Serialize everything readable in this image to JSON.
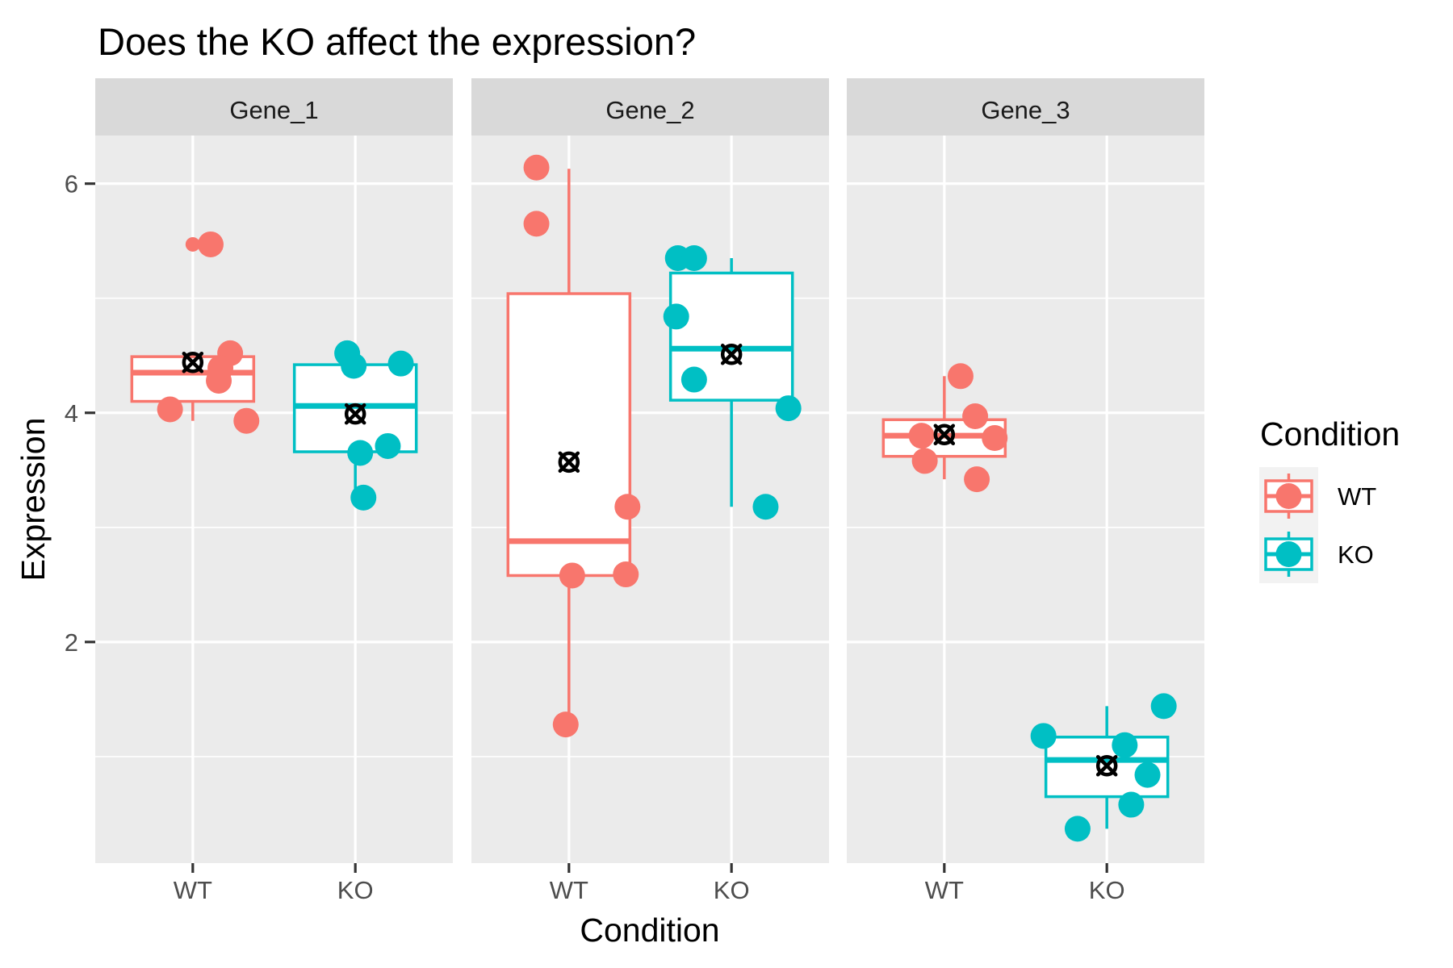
{
  "chart_data": {
    "type": "boxplot",
    "title": "Does the KO affect the expression?",
    "xlabel": "Condition",
    "ylabel": "Expression",
    "ylim": [
      0.07,
      6.42
    ],
    "yticks": [
      2,
      4,
      6
    ],
    "ytick_labels": [
      "2",
      "4",
      "6"
    ],
    "minor_gridlines": [
      1,
      3,
      5
    ],
    "grid": true,
    "categories": [
      "WT",
      "KO"
    ],
    "facets": [
      "Gene_1",
      "Gene_2",
      "Gene_3"
    ],
    "legend": {
      "title": "Condition",
      "position": "right",
      "entries": [
        {
          "label": "WT",
          "color": "#F8766D"
        },
        {
          "label": "KO",
          "color": "#00BFC4"
        }
      ]
    },
    "colors": {
      "WT": "#F8766D",
      "KO": "#00BFC4",
      "mean_marker": "#000000",
      "panel_bg": "#EBEBEB",
      "strip_bg": "#D9D9D9"
    },
    "mean_marker": "circle-x",
    "panels": [
      {
        "facet": "Gene_1",
        "groups": [
          {
            "condition": "WT",
            "lower_whisker": 3.93,
            "q1": 4.1,
            "median": 4.35,
            "q3": 4.49,
            "upper_whisker": 4.52,
            "mean": 4.44,
            "outliers": [
              5.47
            ],
            "points": [
              {
                "jitter": 0.11,
                "y": 5.47
              },
              {
                "jitter": 0.23,
                "y": 4.52
              },
              {
                "jitter": 0.17,
                "y": 4.39
              },
              {
                "jitter": 0.16,
                "y": 4.28
              },
              {
                "jitter": -0.14,
                "y": 4.03
              },
              {
                "jitter": 0.33,
                "y": 3.93
              }
            ]
          },
          {
            "condition": "KO",
            "lower_whisker": 3.26,
            "q1": 3.66,
            "median": 4.06,
            "q3": 4.42,
            "upper_whisker": 4.52,
            "mean": 3.99,
            "outliers": [],
            "points": [
              {
                "jitter": -0.05,
                "y": 4.52
              },
              {
                "jitter": -0.01,
                "y": 4.41
              },
              {
                "jitter": 0.28,
                "y": 4.43
              },
              {
                "jitter": 0.03,
                "y": 3.65
              },
              {
                "jitter": 0.2,
                "y": 3.71
              },
              {
                "jitter": 0.05,
                "y": 3.26
              }
            ]
          }
        ]
      },
      {
        "facet": "Gene_2",
        "groups": [
          {
            "condition": "WT",
            "lower_whisker": 1.28,
            "q1": 2.58,
            "median": 2.88,
            "q3": 5.04,
            "upper_whisker": 6.13,
            "mean": 3.57,
            "outliers": [],
            "points": [
              {
                "jitter": -0.2,
                "y": 6.14
              },
              {
                "jitter": -0.2,
                "y": 5.65
              },
              {
                "jitter": 0.36,
                "y": 3.18
              },
              {
                "jitter": 0.02,
                "y": 2.58
              },
              {
                "jitter": 0.35,
                "y": 2.59
              },
              {
                "jitter": -0.02,
                "y": 1.28
              }
            ]
          },
          {
            "condition": "KO",
            "lower_whisker": 3.18,
            "q1": 4.11,
            "median": 4.56,
            "q3": 5.22,
            "upper_whisker": 5.35,
            "mean": 4.51,
            "outliers": [],
            "points": [
              {
                "jitter": -0.33,
                "y": 5.35
              },
              {
                "jitter": -0.23,
                "y": 5.35
              },
              {
                "jitter": -0.34,
                "y": 4.84
              },
              {
                "jitter": -0.23,
                "y": 4.29
              },
              {
                "jitter": 0.35,
                "y": 4.04
              },
              {
                "jitter": 0.21,
                "y": 3.18
              }
            ]
          }
        ]
      },
      {
        "facet": "Gene_3",
        "groups": [
          {
            "condition": "WT",
            "lower_whisker": 3.42,
            "q1": 3.62,
            "median": 3.8,
            "q3": 3.94,
            "upper_whisker": 4.32,
            "mean": 3.81,
            "outliers": [],
            "points": [
              {
                "jitter": 0.1,
                "y": 4.32
              },
              {
                "jitter": 0.19,
                "y": 3.97
              },
              {
                "jitter": -0.14,
                "y": 3.8
              },
              {
                "jitter": 0.31,
                "y": 3.78
              },
              {
                "jitter": -0.12,
                "y": 3.58
              },
              {
                "jitter": 0.2,
                "y": 3.42
              }
            ]
          },
          {
            "condition": "KO",
            "lower_whisker": 0.37,
            "q1": 0.65,
            "median": 0.97,
            "q3": 1.17,
            "upper_whisker": 1.44,
            "mean": 0.92,
            "outliers": [],
            "points": [
              {
                "jitter": 0.35,
                "y": 1.44
              },
              {
                "jitter": -0.39,
                "y": 1.18
              },
              {
                "jitter": 0.11,
                "y": 1.1
              },
              {
                "jitter": 0.25,
                "y": 0.84
              },
              {
                "jitter": 0.15,
                "y": 0.58
              },
              {
                "jitter": -0.18,
                "y": 0.37
              }
            ]
          }
        ]
      }
    ]
  }
}
